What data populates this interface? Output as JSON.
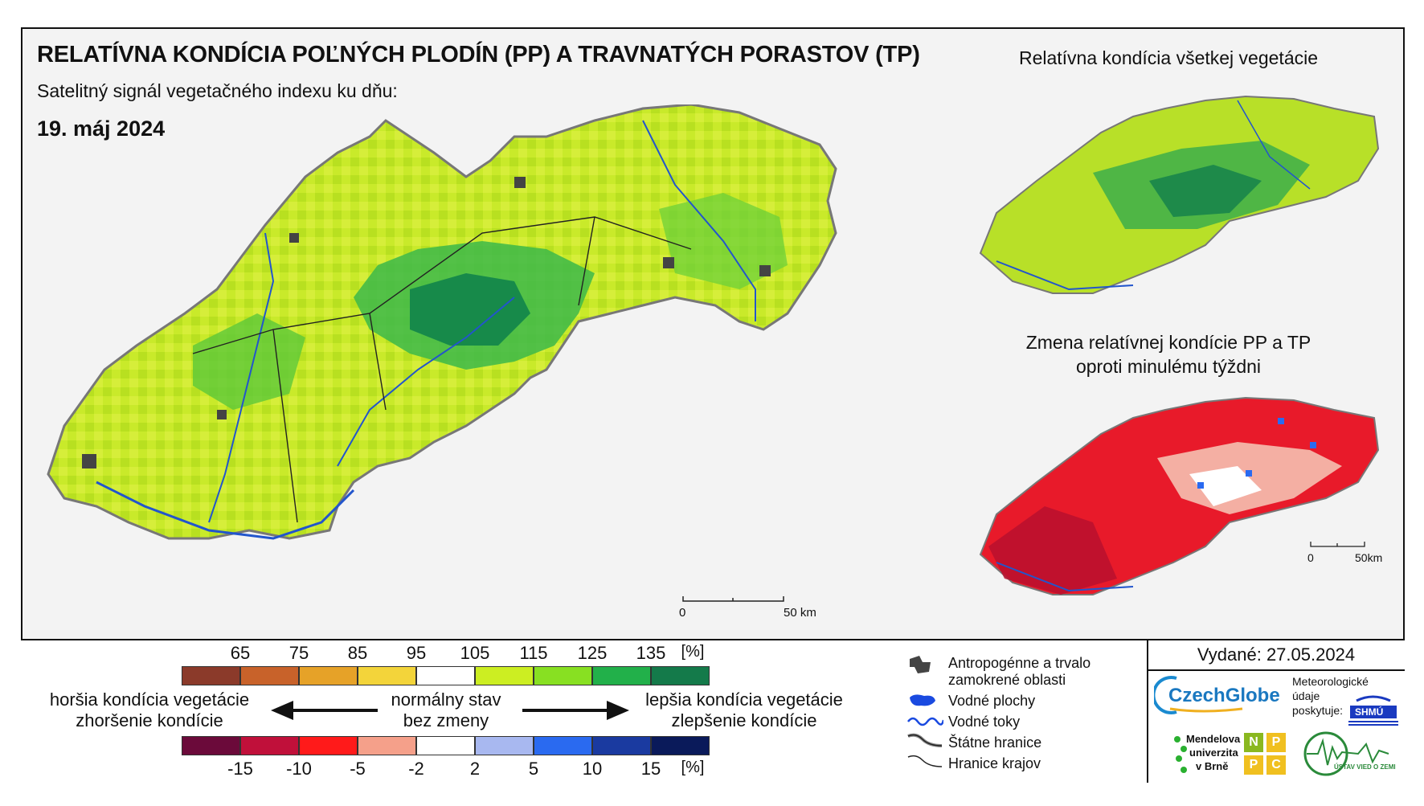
{
  "title": "RELATÍVNA KONDÍCIA POĽNÝCH PLODÍN (PP) A TRAVNATÝCH PORASTOV (TP)",
  "subtitle": "Satelitný signál vegetačného indexu ku dňu:",
  "date": "19. máj 2024",
  "right_top_title": "Relatívna kondícia všetkej vegetácie",
  "right_bottom_title_1": "Zmena relatívnej kondície PP a TP",
  "right_bottom_title_2": "oproti minulému týždni",
  "scalebar_main": {
    "zero": "0",
    "end": "50 km"
  },
  "scalebar_small": {
    "zero": "0",
    "end": "50km"
  },
  "condition_scale": {
    "ticks": [
      "65",
      "75",
      "85",
      "95",
      "105",
      "115",
      "125",
      "135"
    ],
    "unit": "[%]",
    "colors": [
      "#8b3a2a",
      "#c8622a",
      "#e6a228",
      "#f3d43a",
      "#ffffff",
      "#ccee22",
      "#88e022",
      "#22b04a",
      "#147a4a"
    ]
  },
  "change_scale": {
    "ticks": [
      "-15",
      "-10",
      "-5",
      "-2",
      "2",
      "5",
      "10",
      "15"
    ],
    "unit": "[%]",
    "colors": [
      "#6b0a3a",
      "#c0103a",
      "#ff1a1a",
      "#f5a08a",
      "#ffffff",
      "#a8b8f0",
      "#2a6af0",
      "#1a3aa0",
      "#0a1a5a"
    ]
  },
  "captions": {
    "worse_1": "horšia kondícia vegetácie",
    "worse_2": "zhoršenie kondície",
    "normal_1": "normálny stav",
    "normal_2": "bez zmeny",
    "better_1": "lepšia kondícia vegetácie",
    "better_2": "zlepšenie kondície"
  },
  "map_legend": {
    "urban_1": "Antropogénne a trvalo",
    "urban_2": "zamokrené oblasti",
    "water_areas": "Vodné plochy",
    "rivers": "Vodné toky",
    "state_border": "Štátne hranice",
    "region_border": "Hranice krajov"
  },
  "issued": "Vydané: 27.05.2024",
  "logos": {
    "czechglobe": "CzechGlobe",
    "meteo_1": "Meteorologické",
    "meteo_2": "údaje",
    "meteo_3": "poskytuje:",
    "shmu": "SHMÚ",
    "mendel_1": "Mendelova",
    "mendel_2": "univerzita",
    "mendel_3": "v Brně",
    "nppc": [
      "N",
      "P",
      "P",
      "C"
    ],
    "uvz": "ÚSTAV VIED O ZEMI"
  }
}
